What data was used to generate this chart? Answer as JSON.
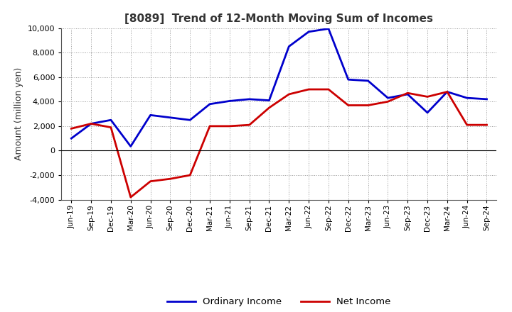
{
  "title": "[8089]  Trend of 12-Month Moving Sum of Incomes",
  "ylabel": "Amount (million yen)",
  "ylim": [
    -4000,
    10000
  ],
  "yticks": [
    -4000,
    -2000,
    0,
    2000,
    4000,
    6000,
    8000,
    10000
  ],
  "x_labels": [
    "Jun-19",
    "Sep-19",
    "Dec-19",
    "Mar-20",
    "Jun-20",
    "Sep-20",
    "Dec-20",
    "Mar-21",
    "Jun-21",
    "Sep-21",
    "Dec-21",
    "Mar-22",
    "Jun-22",
    "Sep-22",
    "Dec-22",
    "Mar-23",
    "Jun-23",
    "Sep-23",
    "Dec-23",
    "Mar-24",
    "Jun-24",
    "Sep-24"
  ],
  "ordinary_income": [
    1000,
    2200,
    2500,
    350,
    2900,
    2700,
    2500,
    3800,
    4050,
    4200,
    4100,
    8500,
    9700,
    9950,
    5800,
    5700,
    4300,
    4600,
    3100,
    4800,
    4300,
    4200
  ],
  "net_income": [
    1800,
    2200,
    1900,
    -3800,
    -2500,
    -2300,
    -2000,
    2000,
    2000,
    2100,
    3500,
    4600,
    5000,
    5000,
    3700,
    3700,
    4000,
    4700,
    4400,
    4800,
    2100,
    2100
  ],
  "ordinary_color": "#0000CC",
  "net_color": "#CC0000",
  "background_color": "#FFFFFF",
  "grid_color": "#999999",
  "legend_labels": [
    "Ordinary Income",
    "Net Income"
  ],
  "title_color": "#333333"
}
